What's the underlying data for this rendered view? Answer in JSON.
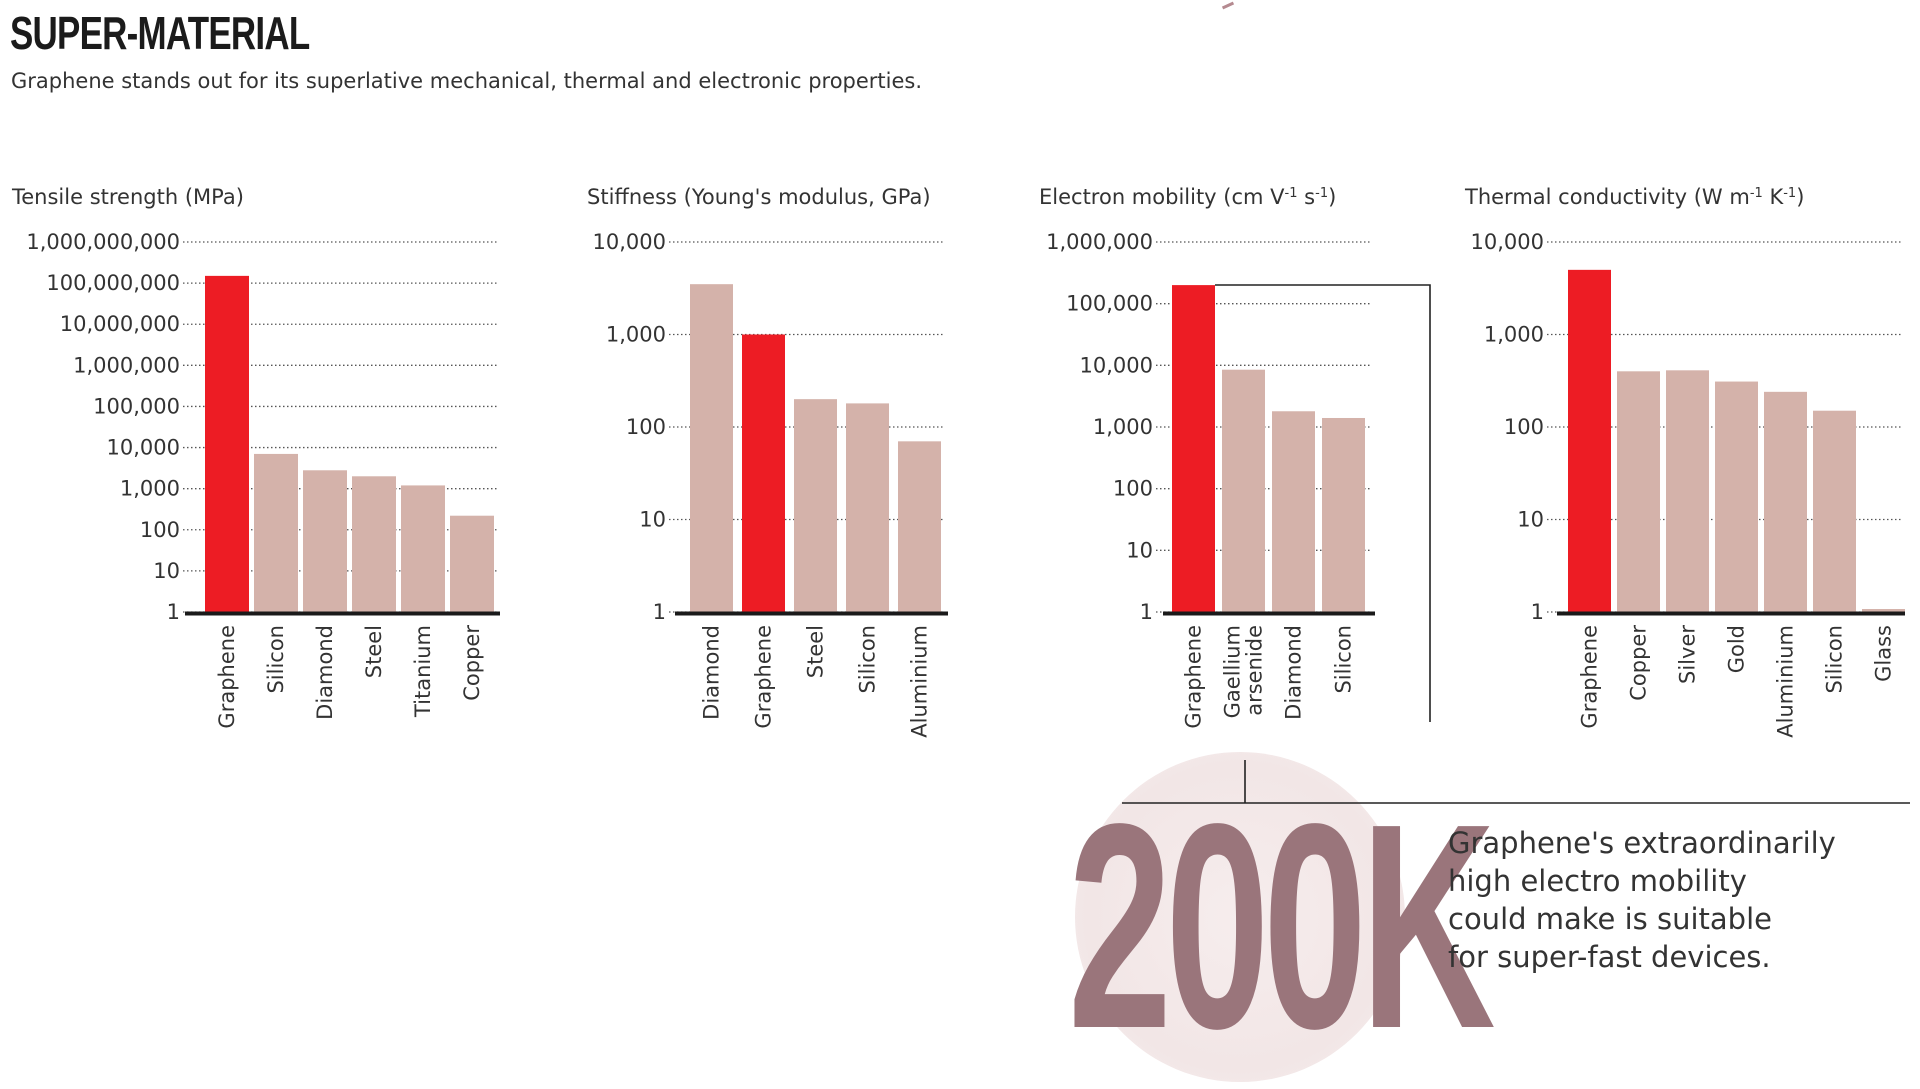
{
  "header": {
    "title": "SUPER-MATERIAL",
    "subtitle": "Graphene stands out for its superlative mechanical, thermal and electronic properties."
  },
  "colors": {
    "highlight": "#ed1c24",
    "bar": "#d4b2aa",
    "axis": "#1a1a1a",
    "big_number": "#9a757b",
    "glow": "#f2e6e6"
  },
  "chart_data": [
    {
      "type": "bar",
      "title": "Tensile strength (MPa)",
      "scale": "log",
      "ylim": [
        1,
        1000000000
      ],
      "y_ticks": [
        "1,000,000,000",
        "100,000,000",
        "10,000,000",
        "1,000,000",
        "100,000",
        "10,000",
        "1,000",
        "100",
        "10",
        "1"
      ],
      "grid": "dotted",
      "categories": [
        "Graphene",
        "Silicon",
        "Diamond",
        "Steel",
        "Titanium",
        "Copper"
      ],
      "values": [
        150000000,
        7000,
        2800,
        2000,
        1200,
        220
      ],
      "highlight": "Graphene"
    },
    {
      "type": "bar",
      "title": "Stiffness (Young's modulus, GPa)",
      "scale": "log",
      "ylim": [
        1,
        10000
      ],
      "y_ticks": [
        "10,000",
        "1,000",
        "100",
        "10",
        "1"
      ],
      "grid": "dotted",
      "categories": [
        "Diamond",
        "Graphene",
        "Steel",
        "Silicon",
        "Aluminium"
      ],
      "values": [
        3500,
        1000,
        200,
        180,
        70
      ],
      "highlight": "Graphene"
    },
    {
      "type": "bar",
      "title": "Electron mobility (cm V-1 s-1)",
      "scale": "log",
      "ylim": [
        1,
        1000000
      ],
      "y_ticks": [
        "1,000,000",
        "100,000",
        "10,000",
        "1,000",
        "100",
        "10",
        "1"
      ],
      "grid": "dotted",
      "categories": [
        "Graphene",
        "Gaellium arsenide",
        "Diamond",
        "Silicon"
      ],
      "values": [
        200000,
        8500,
        1800,
        1400
      ],
      "highlight": "Graphene"
    },
    {
      "type": "bar",
      "title": "Thermal conductivity (W m-1 K-1)",
      "scale": "log",
      "ylim": [
        1,
        10000
      ],
      "y_ticks": [
        "10,000",
        "1,000",
        "100",
        "10",
        "1"
      ],
      "grid": "dotted",
      "categories": [
        "Graphene",
        "Copper",
        "Silver",
        "Gold",
        "Aluminium",
        "Silicon",
        "Glass"
      ],
      "values": [
        5000,
        400,
        410,
        310,
        240,
        150,
        1
      ],
      "highlight": "Graphene"
    }
  ],
  "callout": {
    "value": "200K",
    "text_lines": [
      "Graphene's extraordinarily",
      "high electro mobility",
      "could make is suitable",
      "for super-fast devices."
    ]
  }
}
